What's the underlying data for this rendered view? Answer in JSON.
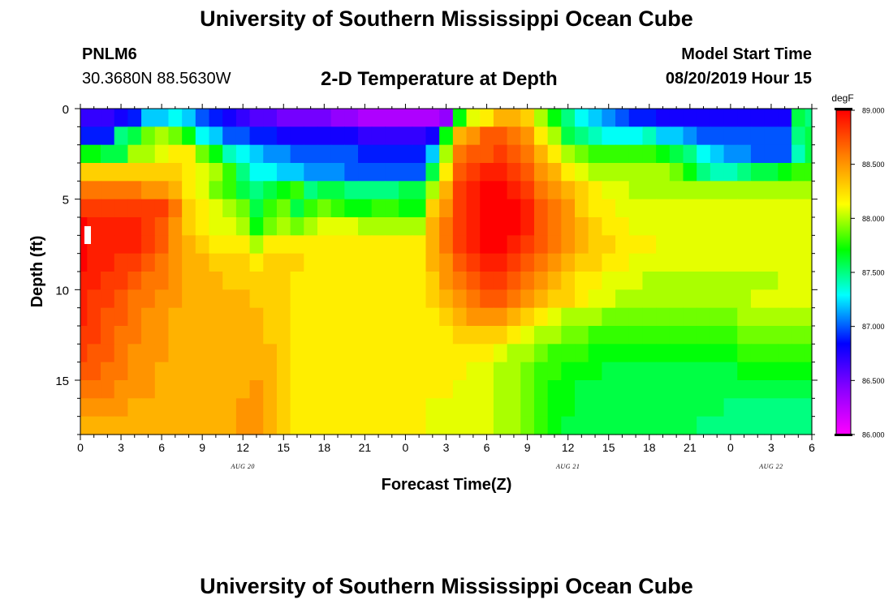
{
  "header": {
    "title": "University of Southern Mississippi Ocean Cube",
    "station": "PNLM6",
    "coords": "30.3680N 88.5630W",
    "subtitle": "2-D Temperature at Depth",
    "model_start_label": "Model Start Time",
    "model_start_value": "08/20/2019 Hour 15"
  },
  "footer": {
    "title": "University of Southern Mississippi Ocean Cube"
  },
  "chart_data": {
    "type": "heatmap",
    "title": "2-D Temperature at Depth",
    "xlabel": "Forecast Time(Z)",
    "ylabel": "Depth (ft)",
    "x_tick_labels": [
      "0",
      "3",
      "6",
      "9",
      "12",
      "15",
      "18",
      "21",
      "0",
      "3",
      "6",
      "9",
      "12",
      "15",
      "18",
      "21",
      "0",
      "3",
      "6"
    ],
    "x_range_hours": [
      0,
      54
    ],
    "date_labels": [
      {
        "label": "AUG 20",
        "hour": 12
      },
      {
        "label": "AUG 21",
        "hour": 36
      },
      {
        "label": "AUG 22",
        "hour": 51
      }
    ],
    "y_ticks": [
      0,
      5,
      10,
      15
    ],
    "y_range_ft": [
      0,
      18
    ],
    "y_inverted": true,
    "colorbar": {
      "unit": "degF",
      "min": 86.0,
      "max": 89.0,
      "tick_labels": [
        "86.000",
        "86.500",
        "87.000",
        "87.500",
        "88.000",
        "88.500",
        "89.000"
      ],
      "colors": [
        "#ff00ff",
        "#8b00ff",
        "#0000ff",
        "#00ffff",
        "#00ff00",
        "#ffff00",
        "#ff7f00",
        "#ff0000"
      ]
    },
    "x_hours": [
      0,
      1,
      2,
      3,
      4,
      5,
      6,
      7,
      8,
      9,
      10,
      11,
      12,
      13,
      14,
      15,
      16,
      17,
      18,
      19,
      20,
      21,
      22,
      23,
      24,
      25,
      26,
      27,
      28,
      29,
      30,
      31,
      32,
      33,
      34,
      35,
      36,
      37,
      38,
      39,
      40,
      41,
      42,
      43,
      44,
      45,
      46,
      47,
      48,
      49,
      50,
      51,
      52,
      53,
      54
    ],
    "depths_ft": [
      0.5,
      1.5,
      2.5,
      3.5,
      4.5,
      5.5,
      6.5,
      7.5,
      8.5,
      9.5,
      10.5,
      11.5,
      12.5,
      13.5,
      14.5,
      15.5,
      16.5,
      17.5
    ],
    "z_degF": [
      [
        86.7,
        86.7,
        86.7,
        86.8,
        86.9,
        87.2,
        87.2,
        87.3,
        87.2,
        87.0,
        86.9,
        86.8,
        86.7,
        86.6,
        86.6,
        86.5,
        86.5,
        86.5,
        86.5,
        86.4,
        86.4,
        86.3,
        86.3,
        86.3,
        86.3,
        86.3,
        86.3,
        86.4,
        87.7,
        88.1,
        88.2,
        88.4,
        88.4,
        88.3,
        88.0,
        87.7,
        87.5,
        87.3,
        87.2,
        87.1,
        87.0,
        86.9,
        86.9,
        86.8,
        86.8,
        86.8,
        86.8,
        86.8,
        86.8,
        86.8,
        86.8,
        86.8,
        86.8,
        87.6,
        87.5
      ],
      [
        86.9,
        86.9,
        86.9,
        87.5,
        87.6,
        87.9,
        88.0,
        87.9,
        87.7,
        87.3,
        87.2,
        87.0,
        87.0,
        86.9,
        86.9,
        86.8,
        86.8,
        86.8,
        86.8,
        86.8,
        86.8,
        86.7,
        86.7,
        86.7,
        86.7,
        86.7,
        86.8,
        87.7,
        88.4,
        88.5,
        88.7,
        88.7,
        88.6,
        88.5,
        88.2,
        88.0,
        87.6,
        87.5,
        87.4,
        87.3,
        87.3,
        87.3,
        87.4,
        87.2,
        87.2,
        87.1,
        87.0,
        87.0,
        87.0,
        87.0,
        87.0,
        87.0,
        87.0,
        87.5,
        87.6
      ],
      [
        87.7,
        87.7,
        87.6,
        87.6,
        88.0,
        88.0,
        88.1,
        88.2,
        88.2,
        87.9,
        87.7,
        87.4,
        87.3,
        87.2,
        87.1,
        87.1,
        87.0,
        87.0,
        87.0,
        87.0,
        87.0,
        86.9,
        86.9,
        86.9,
        86.9,
        86.9,
        87.2,
        88.0,
        88.6,
        88.7,
        88.7,
        88.8,
        88.7,
        88.6,
        88.4,
        88.2,
        88.0,
        87.9,
        87.8,
        87.8,
        87.8,
        87.8,
        87.8,
        87.7,
        87.6,
        87.5,
        87.3,
        87.2,
        87.1,
        87.1,
        87.0,
        87.0,
        87.0,
        87.4,
        87.6
      ],
      [
        88.3,
        88.3,
        88.3,
        88.3,
        88.3,
        88.3,
        88.3,
        88.3,
        88.2,
        88.1,
        88.0,
        87.8,
        87.5,
        87.3,
        87.3,
        87.2,
        87.2,
        87.1,
        87.1,
        87.1,
        87.0,
        87.0,
        87.0,
        87.0,
        87.0,
        87.0,
        87.6,
        88.2,
        88.7,
        88.8,
        88.9,
        88.9,
        88.8,
        88.7,
        88.5,
        88.4,
        88.2,
        88.1,
        88.0,
        88.0,
        88.0,
        88.0,
        88.0,
        88.0,
        87.9,
        87.7,
        87.5,
        87.4,
        87.4,
        87.5,
        87.6,
        87.6,
        87.7,
        87.8,
        87.8
      ],
      [
        88.6,
        88.6,
        88.6,
        88.6,
        88.6,
        88.5,
        88.5,
        88.4,
        88.2,
        88.1,
        87.9,
        87.8,
        87.6,
        87.5,
        87.6,
        87.7,
        87.8,
        87.5,
        87.6,
        87.6,
        87.5,
        87.5,
        87.5,
        87.5,
        87.6,
        87.6,
        88.0,
        88.4,
        88.8,
        88.9,
        89.0,
        89.0,
        88.9,
        88.8,
        88.6,
        88.5,
        88.4,
        88.3,
        88.2,
        88.1,
        88.1,
        88.0,
        88.0,
        88.0,
        88.0,
        88.0,
        88.0,
        88.0,
        88.0,
        88.0,
        88.0,
        88.0,
        88.0,
        88.0,
        88.0
      ],
      [
        88.8,
        88.8,
        88.8,
        88.8,
        88.8,
        88.8,
        88.8,
        88.6,
        88.3,
        88.2,
        88.1,
        88.0,
        87.9,
        87.6,
        87.8,
        87.9,
        87.6,
        87.8,
        87.9,
        87.8,
        87.7,
        87.7,
        87.8,
        87.8,
        87.7,
        87.7,
        88.3,
        88.5,
        88.8,
        88.9,
        89.0,
        89.0,
        89.0,
        88.9,
        88.7,
        88.6,
        88.5,
        88.3,
        88.2,
        88.2,
        88.1,
        88.1,
        88.1,
        88.1,
        88.1,
        88.1,
        88.1,
        88.1,
        88.1,
        88.1,
        88.1,
        88.1,
        88.1,
        88.1,
        88.1
      ],
      [
        89.0,
        88.9,
        88.9,
        88.9,
        88.9,
        88.8,
        88.7,
        88.5,
        88.3,
        88.2,
        88.1,
        88.1,
        88.0,
        87.7,
        87.9,
        88.0,
        87.9,
        88.0,
        88.1,
        88.1,
        88.1,
        88.0,
        88.0,
        88.0,
        88.0,
        88.0,
        88.4,
        88.6,
        88.8,
        88.9,
        89.0,
        89.0,
        89.0,
        88.9,
        88.7,
        88.6,
        88.5,
        88.4,
        88.3,
        88.2,
        88.2,
        88.1,
        88.1,
        88.1,
        88.1,
        88.1,
        88.1,
        88.1,
        88.1,
        88.1,
        88.1,
        88.1,
        88.1,
        88.1,
        88.1
      ],
      [
        89.0,
        88.9,
        88.9,
        88.9,
        88.9,
        88.8,
        88.7,
        88.5,
        88.4,
        88.3,
        88.2,
        88.2,
        88.2,
        88.0,
        88.2,
        88.2,
        88.2,
        88.2,
        88.2,
        88.2,
        88.2,
        88.2,
        88.2,
        88.2,
        88.2,
        88.2,
        88.4,
        88.6,
        88.8,
        88.9,
        89.0,
        89.0,
        88.9,
        88.8,
        88.7,
        88.6,
        88.5,
        88.4,
        88.3,
        88.3,
        88.2,
        88.2,
        88.2,
        88.1,
        88.1,
        88.1,
        88.1,
        88.1,
        88.1,
        88.1,
        88.1,
        88.1,
        88.1,
        88.1,
        88.1
      ],
      [
        89.0,
        88.9,
        88.9,
        88.8,
        88.8,
        88.7,
        88.6,
        88.5,
        88.4,
        88.4,
        88.3,
        88.3,
        88.3,
        88.2,
        88.3,
        88.3,
        88.3,
        88.2,
        88.2,
        88.2,
        88.2,
        88.2,
        88.2,
        88.2,
        88.2,
        88.2,
        88.4,
        88.5,
        88.7,
        88.8,
        88.9,
        88.9,
        88.8,
        88.7,
        88.6,
        88.5,
        88.4,
        88.3,
        88.3,
        88.2,
        88.2,
        88.1,
        88.1,
        88.1,
        88.1,
        88.1,
        88.1,
        88.1,
        88.1,
        88.1,
        88.1,
        88.1,
        88.1,
        88.1,
        88.1
      ],
      [
        88.9,
        88.9,
        88.8,
        88.8,
        88.7,
        88.6,
        88.6,
        88.5,
        88.4,
        88.4,
        88.4,
        88.3,
        88.3,
        88.3,
        88.3,
        88.3,
        88.2,
        88.2,
        88.2,
        88.2,
        88.2,
        88.2,
        88.2,
        88.2,
        88.2,
        88.2,
        88.3,
        88.5,
        88.6,
        88.7,
        88.8,
        88.8,
        88.7,
        88.6,
        88.5,
        88.4,
        88.3,
        88.2,
        88.2,
        88.1,
        88.1,
        88.1,
        88.0,
        88.0,
        88.0,
        88.0,
        88.0,
        88.0,
        88.0,
        88.0,
        88.0,
        88.0,
        88.1,
        88.1,
        88.1
      ],
      [
        88.9,
        88.8,
        88.8,
        88.7,
        88.6,
        88.6,
        88.5,
        88.5,
        88.4,
        88.4,
        88.4,
        88.4,
        88.4,
        88.3,
        88.3,
        88.3,
        88.2,
        88.2,
        88.2,
        88.2,
        88.2,
        88.2,
        88.2,
        88.2,
        88.2,
        88.2,
        88.3,
        88.4,
        88.5,
        88.6,
        88.7,
        88.7,
        88.6,
        88.5,
        88.4,
        88.3,
        88.3,
        88.2,
        88.1,
        88.1,
        88.0,
        88.0,
        88.0,
        88.0,
        88.0,
        88.0,
        88.0,
        88.0,
        88.0,
        88.0,
        88.1,
        88.1,
        88.1,
        88.1,
        88.1
      ],
      [
        88.9,
        88.8,
        88.7,
        88.7,
        88.6,
        88.5,
        88.5,
        88.4,
        88.4,
        88.4,
        88.4,
        88.4,
        88.4,
        88.4,
        88.3,
        88.3,
        88.2,
        88.2,
        88.2,
        88.2,
        88.2,
        88.2,
        88.2,
        88.2,
        88.2,
        88.2,
        88.2,
        88.3,
        88.4,
        88.5,
        88.5,
        88.5,
        88.4,
        88.3,
        88.2,
        88.1,
        88.0,
        88.0,
        88.0,
        87.9,
        87.9,
        87.9,
        87.9,
        87.9,
        87.9,
        87.9,
        87.9,
        87.9,
        87.9,
        88.0,
        88.0,
        88.0,
        88.0,
        88.0,
        88.0
      ],
      [
        88.8,
        88.8,
        88.7,
        88.6,
        88.6,
        88.5,
        88.5,
        88.4,
        88.4,
        88.4,
        88.4,
        88.4,
        88.4,
        88.4,
        88.3,
        88.3,
        88.2,
        88.2,
        88.2,
        88.2,
        88.2,
        88.2,
        88.2,
        88.2,
        88.2,
        88.2,
        88.2,
        88.2,
        88.3,
        88.3,
        88.3,
        88.3,
        88.2,
        88.1,
        88.0,
        88.0,
        87.9,
        87.9,
        87.8,
        87.8,
        87.8,
        87.8,
        87.8,
        87.8,
        87.8,
        87.8,
        87.8,
        87.8,
        87.8,
        87.9,
        87.9,
        87.9,
        87.9,
        87.9,
        87.9
      ],
      [
        88.8,
        88.7,
        88.7,
        88.6,
        88.5,
        88.5,
        88.5,
        88.4,
        88.4,
        88.4,
        88.4,
        88.4,
        88.4,
        88.4,
        88.4,
        88.3,
        88.2,
        88.2,
        88.2,
        88.2,
        88.2,
        88.2,
        88.2,
        88.2,
        88.2,
        88.2,
        88.2,
        88.2,
        88.2,
        88.2,
        88.2,
        88.1,
        88.0,
        88.0,
        87.9,
        87.8,
        87.8,
        87.8,
        87.7,
        87.7,
        87.7,
        87.7,
        87.7,
        87.7,
        87.7,
        87.7,
        87.7,
        87.7,
        87.7,
        87.8,
        87.8,
        87.8,
        87.8,
        87.8,
        87.8
      ],
      [
        88.7,
        88.7,
        88.6,
        88.6,
        88.5,
        88.5,
        88.4,
        88.4,
        88.4,
        88.4,
        88.4,
        88.4,
        88.4,
        88.4,
        88.4,
        88.3,
        88.2,
        88.2,
        88.2,
        88.2,
        88.2,
        88.2,
        88.2,
        88.2,
        88.2,
        88.2,
        88.2,
        88.2,
        88.2,
        88.1,
        88.1,
        88.0,
        88.0,
        87.9,
        87.8,
        87.8,
        87.7,
        87.7,
        87.7,
        87.6,
        87.6,
        87.6,
        87.6,
        87.6,
        87.6,
        87.6,
        87.6,
        87.6,
        87.6,
        87.7,
        87.7,
        87.7,
        87.7,
        87.7,
        87.7
      ],
      [
        88.6,
        88.6,
        88.6,
        88.5,
        88.5,
        88.5,
        88.4,
        88.4,
        88.4,
        88.4,
        88.4,
        88.4,
        88.4,
        88.5,
        88.4,
        88.3,
        88.2,
        88.2,
        88.2,
        88.2,
        88.2,
        88.2,
        88.2,
        88.2,
        88.2,
        88.2,
        88.2,
        88.2,
        88.1,
        88.1,
        88.1,
        88.0,
        88.0,
        87.9,
        87.8,
        87.7,
        87.7,
        87.6,
        87.6,
        87.6,
        87.6,
        87.6,
        87.6,
        87.6,
        87.6,
        87.6,
        87.6,
        87.6,
        87.6,
        87.6,
        87.6,
        87.6,
        87.6,
        87.6,
        87.6
      ],
      [
        88.5,
        88.5,
        88.5,
        88.5,
        88.4,
        88.4,
        88.4,
        88.4,
        88.4,
        88.4,
        88.4,
        88.4,
        88.5,
        88.5,
        88.4,
        88.3,
        88.2,
        88.2,
        88.2,
        88.2,
        88.2,
        88.2,
        88.2,
        88.2,
        88.2,
        88.2,
        88.1,
        88.1,
        88.1,
        88.1,
        88.1,
        88.0,
        88.0,
        87.9,
        87.8,
        87.7,
        87.7,
        87.6,
        87.6,
        87.6,
        87.6,
        87.6,
        87.6,
        87.6,
        87.6,
        87.6,
        87.6,
        87.6,
        87.5,
        87.5,
        87.5,
        87.5,
        87.5,
        87.5,
        87.5
      ],
      [
        88.4,
        88.4,
        88.4,
        88.4,
        88.4,
        88.4,
        88.4,
        88.4,
        88.4,
        88.4,
        88.4,
        88.4,
        88.5,
        88.5,
        88.4,
        88.3,
        88.2,
        88.2,
        88.2,
        88.2,
        88.2,
        88.2,
        88.2,
        88.2,
        88.2,
        88.2,
        88.1,
        88.1,
        88.1,
        88.1,
        88.1,
        88.0,
        88.0,
        87.9,
        87.8,
        87.7,
        87.6,
        87.6,
        87.6,
        87.6,
        87.6,
        87.6,
        87.6,
        87.6,
        87.6,
        87.6,
        87.5,
        87.5,
        87.5,
        87.5,
        87.5,
        87.5,
        87.5,
        87.5,
        87.5
      ]
    ]
  }
}
